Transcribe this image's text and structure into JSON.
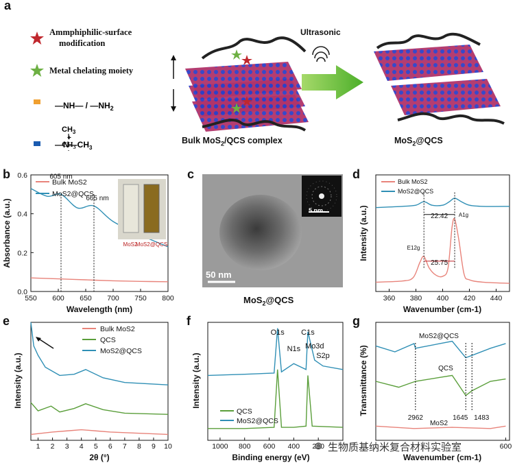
{
  "panels": {
    "a": {
      "label": "a",
      "legend": {
        "star_red": "Ammphiphilic-surface modification",
        "star_red_l1": "Ammphiphilic-surface",
        "star_red_l2": "modification",
        "star_green": "Metal chelating moiety",
        "orange_bar": "—NH— / —NH2",
        "blue_bar": "N+ with three CH3"
      },
      "ultrasonic": "Ultrasonic",
      "left_caption": "Bulk MoS2/QCS complex",
      "right_caption": "MoS2@QCS"
    },
    "b": {
      "label": "b",
      "xlabel": "Wavelength (nm)",
      "ylabel": "Absorbance (a.u.)",
      "xticks": [
        "550",
        "600",
        "650",
        "700",
        "750",
        "800"
      ],
      "yticks": [
        "0.0",
        "0.2",
        "0.4",
        "0.6"
      ],
      "legend": [
        "Bulk MoS2",
        "MoS2@QCS"
      ],
      "annot1": "605 nm",
      "annot2": "665 nm",
      "inset_l": "MoS2",
      "inset_r": "MoS2@QCS"
    },
    "c": {
      "label": "c",
      "scale_main": "50 nm",
      "scale_inset": "5 nm",
      "caption": "MoS2@QCS"
    },
    "d": {
      "label": "d",
      "xlabel": "Wavenumber (cm-1)",
      "ylabel": "Intensity (a.u.)",
      "xticks": [
        "360",
        "380",
        "400",
        "420",
        "440"
      ],
      "legend": [
        "Bulk MoS2",
        "MoS2@QCS"
      ],
      "annot_top": "22.42",
      "annot_bot": "25.75",
      "peak_e": "E12g",
      "peak_a": "A1g"
    },
    "e": {
      "label": "e",
      "xlabel": "2θ (°)",
      "ylabel": "Intensity (a.u.)",
      "xticks": [
        "1",
        "2",
        "3",
        "4",
        "5",
        "6",
        "7",
        "8",
        "9",
        "10"
      ],
      "legend": [
        "Bulk MoS2",
        "QCS",
        "MoS2@QCS"
      ]
    },
    "f": {
      "label": "f",
      "xlabel": "Binding energy (eV)",
      "ylabel": "Intensity (a.u.)",
      "xticks": [
        "1000",
        "800",
        "600",
        "400",
        "200"
      ],
      "legend": [
        "QCS",
        "MoS2@QCS"
      ],
      "peaks": [
        "O1s",
        "N1s",
        "C1s",
        "Mo3d",
        "S2p"
      ]
    },
    "g": {
      "label": "g",
      "xlabel": "Wavenumber (cm-1)",
      "ylabel": "Transmittance (%)",
      "xticks": [
        "600"
      ],
      "curve_labels": [
        "MoS2@QCS",
        "QCS",
        "MoS2"
      ],
      "annot": [
        "2962",
        "1645",
        "1483"
      ]
    }
  },
  "colors": {
    "pink": "#e8837a",
    "teal": "#2f8fb5",
    "green": "#5a9e3a"
  },
  "watermark": "生物质基纳米复合材料实验室",
  "chart_data": [
    {
      "panel": "b",
      "type": "line",
      "xlabel": "Wavelength (nm)",
      "ylabel": "Absorbance (a.u.)",
      "xlim": [
        550,
        800
      ],
      "ylim": [
        0,
        0.6
      ],
      "series": [
        {
          "name": "Bulk MoS2",
          "x": [
            550,
            600,
            650,
            700,
            750,
            800
          ],
          "y": [
            0.07,
            0.065,
            0.06,
            0.055,
            0.052,
            0.05
          ]
        },
        {
          "name": "MoS2@QCS",
          "x": [
            550,
            580,
            605,
            635,
            665,
            700,
            750,
            800
          ],
          "y": [
            0.53,
            0.49,
            0.5,
            0.43,
            0.44,
            0.36,
            0.29,
            0.23
          ]
        }
      ]
    },
    {
      "panel": "d",
      "type": "line",
      "xlabel": "Wavenumber (cm-1)",
      "ylabel": "Intensity (a.u.)",
      "xlim": [
        350,
        450
      ],
      "series": [
        {
          "name": "Bulk MoS2",
          "x": [
            350,
            370,
            378,
            383,
            386,
            390,
            395,
            400,
            404,
            407,
            409,
            412,
            416,
            420,
            430,
            450
          ],
          "y": [
            0.08,
            0.09,
            0.12,
            0.25,
            0.3,
            0.2,
            0.14,
            0.13,
            0.2,
            0.55,
            0.62,
            0.45,
            0.15,
            0.1,
            0.08,
            0.07
          ]
        },
        {
          "name": "MoS2@QCS",
          "x": [
            350,
            370,
            380,
            386,
            392,
            400,
            405,
            409,
            414,
            420,
            430,
            450
          ],
          "y": [
            0.72,
            0.73,
            0.74,
            0.77,
            0.74,
            0.74,
            0.77,
            0.8,
            0.77,
            0.74,
            0.73,
            0.73
          ]
        }
      ]
    },
    {
      "panel": "e",
      "type": "line",
      "xlabel": "2θ (°)",
      "ylabel": "Intensity (a.u.)",
      "xlim": [
        0.5,
        10
      ],
      "series": [
        {
          "name": "Bulk MoS2",
          "x": [
            0.5,
            2,
            3,
            4,
            5,
            6,
            8,
            10
          ],
          "y": [
            0.05,
            0.07,
            0.08,
            0.09,
            0.08,
            0.07,
            0.06,
            0.05
          ]
        },
        {
          "name": "QCS",
          "x": [
            0.5,
            1,
            1.9,
            2.5,
            3.5,
            4.3,
            5.5,
            7,
            10
          ],
          "y": [
            0.32,
            0.25,
            0.29,
            0.24,
            0.27,
            0.31,
            0.26,
            0.23,
            0.22
          ]
        },
        {
          "name": "MoS2@QCS",
          "x": [
            0.5,
            0.7,
            1,
            1.5,
            2.5,
            3.5,
            4.3,
            5.5,
            7,
            10
          ],
          "y": [
            1.0,
            0.8,
            0.72,
            0.62,
            0.55,
            0.56,
            0.6,
            0.53,
            0.49,
            0.47
          ]
        }
      ]
    },
    {
      "panel": "f",
      "type": "line",
      "xlabel": "Binding energy (eV)",
      "ylabel": "Intensity (a.u.)",
      "xlim": [
        1100,
        0
      ],
      "series": [
        {
          "name": "QCS",
          "x": [
            1100,
            800,
            560,
            532,
            500,
            400,
            300,
            285,
            250,
            0
          ],
          "y": [
            0.1,
            0.1,
            0.11,
            0.6,
            0.11,
            0.11,
            0.12,
            0.55,
            0.12,
            0.11
          ]
        },
        {
          "name": "MoS2@QCS",
          "x": [
            1100,
            800,
            560,
            532,
            500,
            400,
            300,
            285,
            230,
            162,
            0
          ],
          "y": [
            0.55,
            0.56,
            0.57,
            0.95,
            0.58,
            0.65,
            0.6,
            0.92,
            0.68,
            0.63,
            0.6
          ]
        }
      ]
    },
    {
      "panel": "g",
      "type": "line",
      "xlabel": "Wavenumber (cm-1)",
      "ylabel": "Transmittance (%)",
      "series": [
        {
          "name": "MoS2@QCS",
          "x": [
            4000,
            3500,
            3000,
            2962,
            2000,
            1645,
            1483,
            1000,
            600
          ],
          "y": [
            0.8,
            0.75,
            0.82,
            0.78,
            0.84,
            0.7,
            0.72,
            0.78,
            0.82
          ]
        },
        {
          "name": "QCS",
          "x": [
            4000,
            3400,
            2962,
            2000,
            1645,
            1483,
            1000,
            600
          ],
          "y": [
            0.5,
            0.45,
            0.5,
            0.55,
            0.38,
            0.42,
            0.5,
            0.52
          ]
        },
        {
          "name": "MoS2",
          "x": [
            4000,
            3000,
            2000,
            1000,
            600
          ],
          "y": [
            0.12,
            0.1,
            0.11,
            0.1,
            0.12
          ]
        }
      ]
    }
  ]
}
